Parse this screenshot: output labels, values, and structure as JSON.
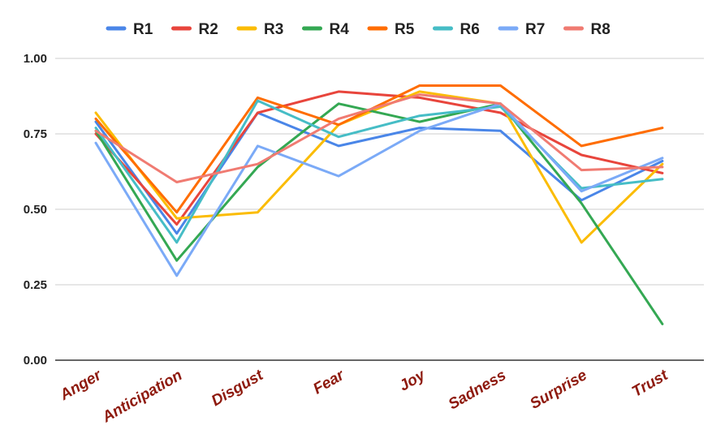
{
  "chart_data": {
    "type": "line",
    "categories": [
      "Anger",
      "Anticipation",
      "Disgust",
      "Fear",
      "Joy",
      "Sadness",
      "Surprise",
      "Trust"
    ],
    "ylim": [
      0,
      1
    ],
    "yticks": [
      "0.00",
      "0.25",
      "0.50",
      "0.75",
      "1.00"
    ],
    "yticks_values": [
      0,
      0.25,
      0.5,
      0.75,
      1.0
    ],
    "grid": true,
    "legend_position": "top",
    "series": [
      {
        "name": "R1",
        "color": "#4a86e8",
        "values": [
          0.79,
          0.42,
          0.82,
          0.71,
          0.77,
          0.76,
          0.53,
          0.66
        ]
      },
      {
        "name": "R2",
        "color": "#e8453c",
        "values": [
          0.75,
          0.45,
          0.82,
          0.89,
          0.87,
          0.82,
          0.68,
          0.62
        ]
      },
      {
        "name": "R3",
        "color": "#fbbc04",
        "values": [
          0.82,
          0.47,
          0.49,
          0.78,
          0.89,
          0.85,
          0.39,
          0.65
        ]
      },
      {
        "name": "R4",
        "color": "#34a853",
        "values": [
          0.76,
          0.33,
          0.64,
          0.85,
          0.79,
          0.85,
          0.52,
          0.12
        ]
      },
      {
        "name": "R5",
        "color": "#ff6d01",
        "values": [
          0.8,
          0.49,
          0.87,
          0.78,
          0.91,
          0.91,
          0.71,
          0.77
        ]
      },
      {
        "name": "R6",
        "color": "#46bdc6",
        "values": [
          0.77,
          0.39,
          0.86,
          0.74,
          0.81,
          0.84,
          0.57,
          0.6
        ]
      },
      {
        "name": "R7",
        "color": "#7baaf7",
        "values": [
          0.72,
          0.28,
          0.71,
          0.61,
          0.76,
          0.85,
          0.56,
          0.67
        ]
      },
      {
        "name": "R8",
        "color": "#f07b72",
        "values": [
          0.76,
          0.59,
          0.65,
          0.8,
          0.88,
          0.85,
          0.63,
          0.64
        ]
      }
    ]
  }
}
